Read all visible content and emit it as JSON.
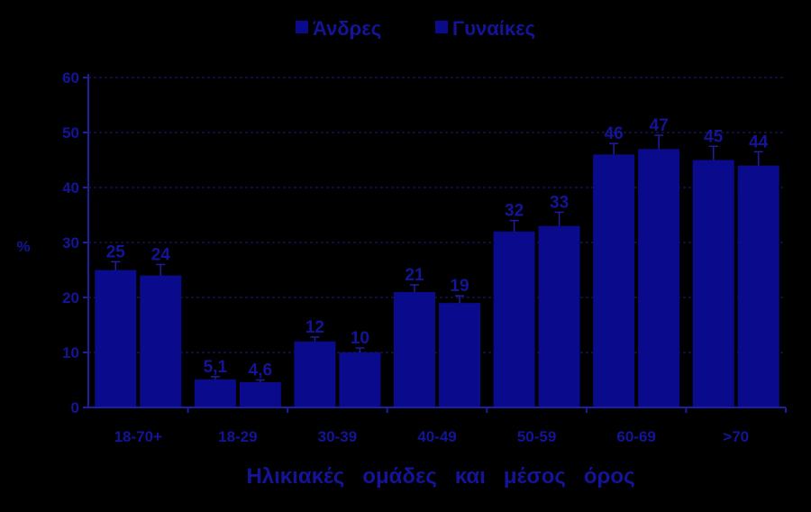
{
  "chart_data": {
    "type": "bar",
    "categories": [
      "18-70+",
      "18-29",
      "30-39",
      "40-49",
      "50-59",
      "60-69",
      ">70"
    ],
    "series": [
      {
        "name": "Άνδρες",
        "values": [
          25,
          5.1,
          12,
          21,
          32,
          46,
          45
        ],
        "labels": [
          "25",
          "5,1",
          "12",
          "21",
          "32",
          "46",
          "45"
        ],
        "error_upper": [
          26.5,
          5.6,
          12.8,
          22.3,
          34,
          48,
          47.5
        ]
      },
      {
        "name": "Γυναίκες",
        "values": [
          24,
          4.6,
          10,
          19,
          33,
          47,
          44
        ],
        "labels": [
          "24",
          "4,6",
          "10",
          "19",
          "33",
          "47",
          "44"
        ],
        "error_upper": [
          26,
          5,
          10.8,
          20.3,
          35.5,
          49.5,
          46.5
        ]
      }
    ],
    "yticks": [
      "0",
      "10",
      "20",
      "30",
      "40",
      "50",
      "60"
    ],
    "ylim": [
      0,
      60
    ],
    "ylabel": "%",
    "xlabel": "Ηλικιακές   ομάδες   και   μέσος   όρος",
    "grid": "dashed horizontal",
    "legend": "top-center"
  },
  "colors": {
    "background": "#000000",
    "bar": "#0A0A8C",
    "text": "#14149A",
    "axis": "#1E1EA0",
    "grid": "#1E1E78"
  }
}
